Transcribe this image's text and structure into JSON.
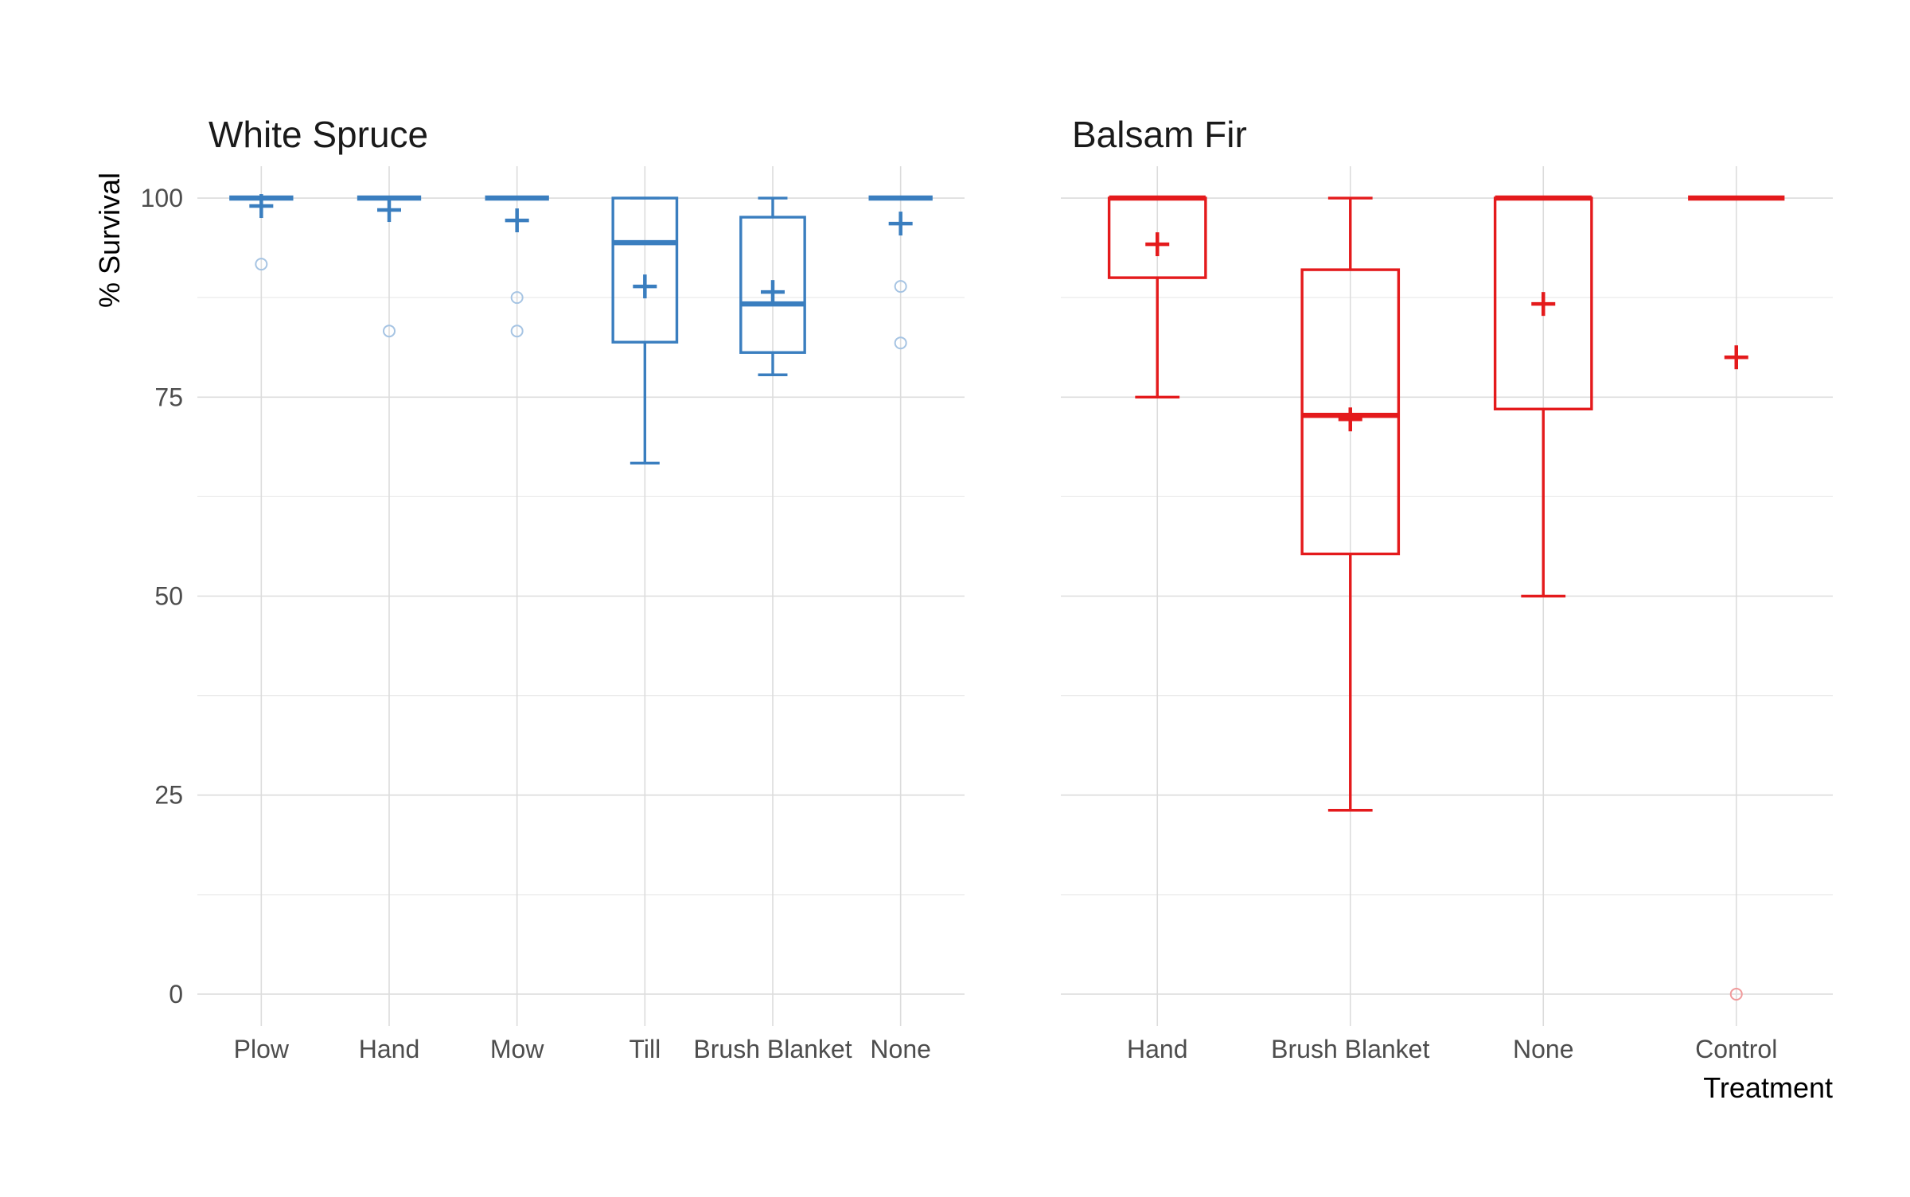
{
  "chart_data": {
    "type": "box",
    "y_label": "% Survival",
    "x_label": "Treatment",
    "y_range": [
      -4,
      104
    ],
    "y_ticks": [
      0,
      25,
      50,
      75,
      100
    ],
    "grid": true,
    "legend": "none",
    "mean_marker": "+",
    "panels": [
      {
        "title": "White Spruce",
        "color": "#3a7ebf",
        "outlier_color": "#a6c4e3",
        "categories": [
          "Plow",
          "Hand",
          "Mow",
          "Till",
          "Brush Blanket",
          "None"
        ],
        "boxes": [
          {
            "category": "Plow",
            "min": 100,
            "q1": 100,
            "median": 100,
            "q3": 100,
            "max": 100,
            "mean": 99,
            "outliers": [
              91.7
            ]
          },
          {
            "category": "Hand",
            "min": 100,
            "q1": 100,
            "median": 100,
            "q3": 100,
            "max": 100,
            "mean": 98.5,
            "outliers": [
              83.3
            ]
          },
          {
            "category": "Mow",
            "min": 100,
            "q1": 100,
            "median": 100,
            "q3": 100,
            "max": 100,
            "mean": 97.2,
            "outliers": [
              87.5,
              83.3
            ]
          },
          {
            "category": "Till",
            "min": 66.7,
            "q1": 81.9,
            "median": 94.4,
            "q3": 100,
            "max": 100,
            "mean": 88.9,
            "outliers": []
          },
          {
            "category": "Brush Blanket",
            "min": 77.8,
            "q1": 80.6,
            "median": 86.7,
            "q3": 97.6,
            "max": 100,
            "mean": 88.2,
            "outliers": []
          },
          {
            "category": "None",
            "min": 100,
            "q1": 100,
            "median": 100,
            "q3": 100,
            "max": 100,
            "mean": 96.8,
            "outliers": [
              88.9,
              81.8
            ]
          }
        ]
      },
      {
        "title": "Balsam Fir",
        "color": "#e41a1c",
        "outlier_color": "#f09a9b",
        "categories": [
          "Hand",
          "Brush Blanket",
          "None",
          "Control"
        ],
        "boxes": [
          {
            "category": "Hand",
            "min": 75,
            "q1": 90,
            "median": 100,
            "q3": 100,
            "max": 100,
            "mean": 94.2,
            "outliers": []
          },
          {
            "category": "Brush Blanket",
            "min": 23.1,
            "q1": 55.3,
            "median": 72.7,
            "q3": 91,
            "max": 100,
            "mean": 72.2,
            "outliers": []
          },
          {
            "category": "None",
            "min": 50,
            "q1": 73.5,
            "median": 100,
            "q3": 100,
            "max": 100,
            "mean": 86.7,
            "outliers": []
          },
          {
            "category": "Control",
            "min": 100,
            "q1": 100,
            "median": 100,
            "q3": 100,
            "max": 100,
            "mean": 80,
            "outliers": [
              0
            ]
          }
        ]
      }
    ]
  }
}
